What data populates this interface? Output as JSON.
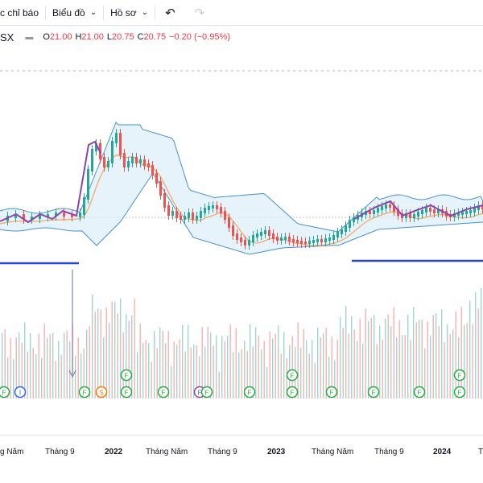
{
  "toolbar": {
    "indicators_label": "c chỉ báo",
    "chart_label": "Biểu đồ",
    "profile_label": "Hồ sơ"
  },
  "legend": {
    "symbol": "SX",
    "o_key": "O",
    "o_val": "21.00",
    "h_key": "H",
    "h_val": "21.00",
    "l_key": "L",
    "l_val": "20.75",
    "c_key": "C",
    "c_val": "20.75",
    "change": "−0.20 (−0.95%)"
  },
  "xaxis": {
    "labels": [
      "g Năm",
      "Tháng 9",
      "2022",
      "Tháng Năm",
      "Tháng 9",
      "2023",
      "Tháng Năm",
      "Tháng 9",
      "2024",
      "T"
    ]
  },
  "colors": {
    "up": "#26a69a",
    "down": "#ef5350",
    "band_fill": "#dbeef8",
    "band_line": "#4a90c8",
    "ma": "#f7a35c",
    "trend": "#8e44ad",
    "support": "#2747c9"
  },
  "events": [
    "F",
    "I",
    "F",
    "S",
    "F",
    "F",
    "F",
    "F",
    "F",
    "F",
    "F",
    "F",
    "F",
    "F",
    "F",
    "F"
  ]
}
